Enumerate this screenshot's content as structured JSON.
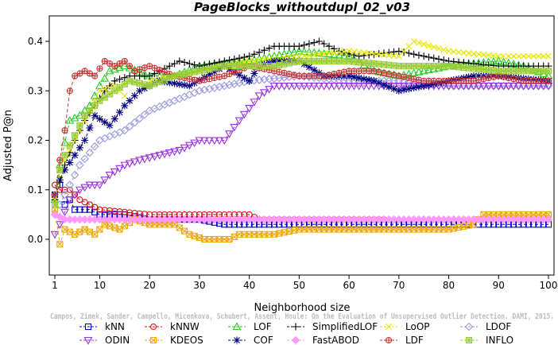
{
  "chart_data": {
    "type": "line",
    "title": "PageBlocks_withoutdupl_02_v03",
    "xlabel": "Neighborhood size",
    "ylabel": "Adjusted P@n",
    "xlim": [
      1,
      100
    ],
    "ylim": [
      -0.04,
      0.44
    ],
    "x_ticks": [
      1,
      10,
      20,
      30,
      40,
      50,
      60,
      70,
      80,
      90,
      100
    ],
    "y_ticks": [
      0.0,
      0.1,
      0.2,
      0.3,
      0.4
    ],
    "y_tick_labels": [
      "0.0",
      "0.1",
      "0.2",
      "0.3",
      "0.4"
    ],
    "grid": false,
    "legend_position": "bottom",
    "credit": "Campos, Zimek, Sander, Campello, Micenkova, Schubert, Assent, Houle: On the Evaluation of Unsupervised Outlier Detection. DAMI, 2015.",
    "series": [
      {
        "name": "kNN",
        "color": "#0000cd",
        "marker": "square",
        "dash": "4,3",
        "points": [
          [
            1,
            0.09
          ],
          [
            2,
            0.11
          ],
          [
            3,
            0.07
          ],
          [
            4,
            0.08
          ],
          [
            5,
            0.06
          ],
          [
            8,
            0.06
          ],
          [
            10,
            0.05
          ],
          [
            15,
            0.05
          ],
          [
            20,
            0.04
          ],
          [
            30,
            0.04
          ],
          [
            35,
            0.03
          ],
          [
            50,
            0.03
          ],
          [
            70,
            0.03
          ],
          [
            100,
            0.03
          ]
        ]
      },
      {
        "name": "kNNW",
        "color": "#dd1111",
        "marker": "circle",
        "dash": "4,3",
        "points": [
          [
            1,
            0.11
          ],
          [
            2,
            0.1
          ],
          [
            4,
            0.1
          ],
          [
            6,
            0.08
          ],
          [
            8,
            0.07
          ],
          [
            10,
            0.06
          ],
          [
            20,
            0.05
          ],
          [
            40,
            0.05
          ],
          [
            42,
            0.04
          ],
          [
            67,
            0.04
          ]
        ]
      },
      {
        "name": "LOF",
        "color": "#22cc22",
        "marker": "triangle-up",
        "dash": "4,3",
        "points": [
          [
            1,
            0.08
          ],
          [
            2,
            0.15
          ],
          [
            4,
            0.24
          ],
          [
            6,
            0.25
          ],
          [
            8,
            0.27
          ],
          [
            10,
            0.31
          ],
          [
            12,
            0.34
          ],
          [
            15,
            0.35
          ],
          [
            20,
            0.33
          ],
          [
            25,
            0.33
          ],
          [
            30,
            0.35
          ],
          [
            40,
            0.36
          ],
          [
            45,
            0.37
          ],
          [
            50,
            0.38
          ],
          [
            60,
            0.37
          ],
          [
            65,
            0.34
          ],
          [
            70,
            0.33
          ],
          [
            75,
            0.34
          ],
          [
            80,
            0.35
          ],
          [
            90,
            0.36
          ],
          [
            95,
            0.35
          ],
          [
            100,
            0.33
          ]
        ]
      },
      {
        "name": "SimplifiedLOF",
        "color": "#000000",
        "marker": "plus",
        "dash": "4,3",
        "points": [
          [
            1,
            0.08
          ],
          [
            3,
            0.15
          ],
          [
            5,
            0.2
          ],
          [
            7,
            0.24
          ],
          [
            9,
            0.27
          ],
          [
            11,
            0.3
          ],
          [
            13,
            0.32
          ],
          [
            16,
            0.33
          ],
          [
            20,
            0.33
          ],
          [
            26,
            0.36
          ],
          [
            30,
            0.35
          ],
          [
            40,
            0.37
          ],
          [
            45,
            0.39
          ],
          [
            50,
            0.39
          ],
          [
            54,
            0.4
          ],
          [
            58,
            0.38
          ],
          [
            62,
            0.37
          ],
          [
            70,
            0.38
          ],
          [
            80,
            0.36
          ],
          [
            90,
            0.35
          ],
          [
            100,
            0.35
          ]
        ]
      },
      {
        "name": "LoOP",
        "color": "#e6e600",
        "marker": "x",
        "dash": "4,3",
        "points": [
          [
            1,
            0.08
          ],
          [
            3,
            0.16
          ],
          [
            5,
            0.2
          ],
          [
            8,
            0.26
          ],
          [
            10,
            0.3
          ],
          [
            13,
            0.31
          ],
          [
            16,
            0.28
          ],
          [
            20,
            0.32
          ],
          [
            30,
            0.34
          ],
          [
            40,
            0.36
          ],
          [
            50,
            0.37
          ],
          [
            60,
            0.38
          ],
          [
            70,
            0.37
          ],
          [
            73,
            0.4
          ],
          [
            80,
            0.38
          ],
          [
            90,
            0.37
          ],
          [
            100,
            0.37
          ]
        ]
      },
      {
        "name": "LDOF",
        "color": "#9999dd",
        "marker": "diamond",
        "dash": "4,3",
        "points": [
          [
            1,
            0.05
          ],
          [
            3,
            0.09
          ],
          [
            6,
            0.15
          ],
          [
            10,
            0.2
          ],
          [
            15,
            0.22
          ],
          [
            20,
            0.26
          ],
          [
            25,
            0.28
          ],
          [
            30,
            0.3
          ],
          [
            35,
            0.31
          ],
          [
            40,
            0.32
          ],
          [
            50,
            0.33
          ],
          [
            60,
            0.32
          ],
          [
            70,
            0.32
          ],
          [
            80,
            0.31
          ],
          [
            90,
            0.31
          ],
          [
            100,
            0.31
          ]
        ]
      },
      {
        "name": "ODIN",
        "color": "#9933dd",
        "marker": "triangle-down",
        "dash": "4,3",
        "points": [
          [
            1,
            0.01
          ],
          [
            2,
            0.03
          ],
          [
            4,
            0.08
          ],
          [
            6,
            0.1
          ],
          [
            8,
            0.11
          ],
          [
            10,
            0.11
          ],
          [
            12,
            0.13
          ],
          [
            15,
            0.15
          ],
          [
            18,
            0.16
          ],
          [
            22,
            0.17
          ],
          [
            26,
            0.18
          ],
          [
            30,
            0.2
          ],
          [
            32,
            0.2
          ],
          [
            35,
            0.2
          ],
          [
            38,
            0.24
          ],
          [
            42,
            0.29
          ],
          [
            45,
            0.31
          ],
          [
            50,
            0.31
          ],
          [
            60,
            0.31
          ],
          [
            70,
            0.31
          ],
          [
            80,
            0.31
          ],
          [
            90,
            0.31
          ],
          [
            100,
            0.31
          ]
        ]
      },
      {
        "name": "KDEOS",
        "color": "#f0a800",
        "marker": "square-x",
        "dash": "4,3",
        "points": [
          [
            1,
            0.06
          ],
          [
            2,
            -0.01
          ],
          [
            3,
            0.02
          ],
          [
            5,
            0.01
          ],
          [
            7,
            0.02
          ],
          [
            9,
            0.01
          ],
          [
            11,
            0.03
          ],
          [
            14,
            0.02
          ],
          [
            17,
            0.04
          ],
          [
            20,
            0.03
          ],
          [
            25,
            0.03
          ],
          [
            28,
            0.01
          ],
          [
            31,
            0.0
          ],
          [
            36,
            0.0
          ],
          [
            38,
            0.01
          ],
          [
            45,
            0.01
          ],
          [
            50,
            0.02
          ],
          [
            60,
            0.02
          ],
          [
            70,
            0.02
          ],
          [
            80,
            0.02
          ],
          [
            85,
            0.03
          ],
          [
            87,
            0.05
          ],
          [
            100,
            0.05
          ]
        ]
      },
      {
        "name": "COF",
        "color": "#000080",
        "marker": "asterisk",
        "dash": "4,3",
        "points": [
          [
            1,
            0.09
          ],
          [
            2,
            0.12
          ],
          [
            3,
            0.14
          ],
          [
            5,
            0.17
          ],
          [
            7,
            0.2
          ],
          [
            9,
            0.25
          ],
          [
            12,
            0.23
          ],
          [
            15,
            0.27
          ],
          [
            18,
            0.3
          ],
          [
            22,
            0.32
          ],
          [
            28,
            0.31
          ],
          [
            35,
            0.35
          ],
          [
            40,
            0.32
          ],
          [
            42,
            0.35
          ],
          [
            45,
            0.36
          ],
          [
            50,
            0.36
          ],
          [
            55,
            0.33
          ],
          [
            60,
            0.33
          ],
          [
            65,
            0.32
          ],
          [
            70,
            0.3
          ],
          [
            75,
            0.31
          ],
          [
            80,
            0.32
          ],
          [
            85,
            0.33
          ],
          [
            90,
            0.33
          ],
          [
            100,
            0.32
          ]
        ]
      },
      {
        "name": "FastABOD",
        "color": "#ff99ff",
        "marker": "diamond-filled",
        "dash": "4,3",
        "points": [
          [
            1,
            0.05
          ],
          [
            3,
            0.04
          ],
          [
            10,
            0.04
          ],
          [
            30,
            0.04
          ],
          [
            60,
            0.04
          ],
          [
            100,
            0.04
          ]
        ]
      },
      {
        "name": "LDF",
        "color": "#cc3333",
        "marker": "circle-plus",
        "dash": "4,3",
        "points": [
          [
            1,
            0.09
          ],
          [
            2,
            0.16
          ],
          [
            3,
            0.22
          ],
          [
            4,
            0.3
          ],
          [
            5,
            0.33
          ],
          [
            7,
            0.34
          ],
          [
            9,
            0.33
          ],
          [
            11,
            0.36
          ],
          [
            13,
            0.35
          ],
          [
            15,
            0.36
          ],
          [
            17,
            0.34
          ],
          [
            20,
            0.35
          ],
          [
            25,
            0.33
          ],
          [
            30,
            0.32
          ],
          [
            35,
            0.33
          ],
          [
            40,
            0.35
          ],
          [
            45,
            0.34
          ],
          [
            50,
            0.33
          ],
          [
            55,
            0.33
          ],
          [
            60,
            0.34
          ],
          [
            65,
            0.34
          ],
          [
            70,
            0.33
          ],
          [
            75,
            0.32
          ],
          [
            80,
            0.32
          ],
          [
            85,
            0.32
          ],
          [
            90,
            0.33
          ],
          [
            95,
            0.32
          ],
          [
            100,
            0.32
          ]
        ]
      },
      {
        "name": "INFLO",
        "color": "#99cc33",
        "marker": "square-star",
        "dash": "4,3",
        "points": [
          [
            1,
            0.07
          ],
          [
            2,
            0.14
          ],
          [
            3,
            0.17
          ],
          [
            5,
            0.21
          ],
          [
            7,
            0.25
          ],
          [
            10,
            0.28
          ],
          [
            13,
            0.3
          ],
          [
            16,
            0.32
          ],
          [
            20,
            0.31
          ],
          [
            25,
            0.33
          ],
          [
            30,
            0.34
          ],
          [
            35,
            0.35
          ],
          [
            40,
            0.35
          ],
          [
            45,
            0.35
          ],
          [
            50,
            0.36
          ],
          [
            55,
            0.36
          ],
          [
            60,
            0.36
          ],
          [
            70,
            0.35
          ],
          [
            80,
            0.35
          ],
          [
            90,
            0.34
          ],
          [
            100,
            0.34
          ]
        ]
      }
    ]
  }
}
